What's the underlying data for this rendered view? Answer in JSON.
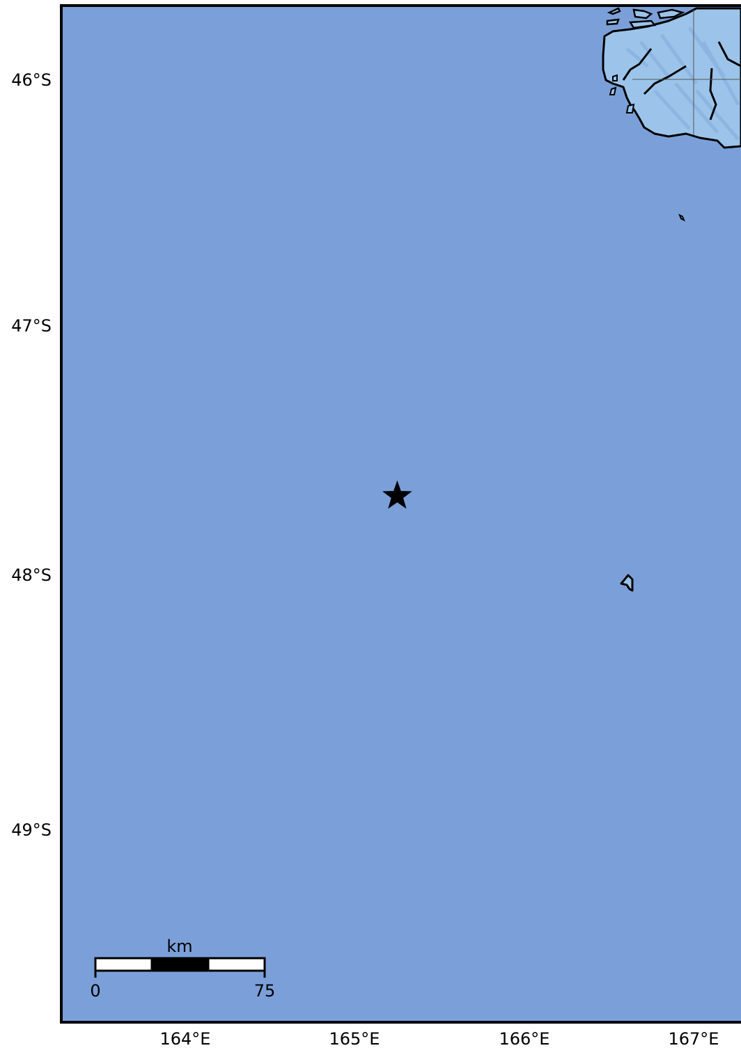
{
  "map": {
    "colors": {
      "ocean": "#7ba0d9",
      "land": "#9cc4ea",
      "land_relief": "#8ab2de",
      "coastline": "#000000",
      "frame": "#000000",
      "graticule": "#555555"
    },
    "longitude_labels": [
      "164°E",
      "165°E",
      "166°E",
      "167°E"
    ],
    "latitude_labels": [
      "46°S",
      "47°S",
      "48°S",
      "49°S"
    ],
    "epicenter_marker": {
      "icon": "star-icon",
      "color": "#000000",
      "lon": 165.25,
      "lat": -47.7
    },
    "scale_bar": {
      "unit": "km",
      "start_label": "0",
      "end_label": "75",
      "segment_colors": [
        "#ffffff",
        "#000000",
        "#ffffff"
      ]
    }
  }
}
